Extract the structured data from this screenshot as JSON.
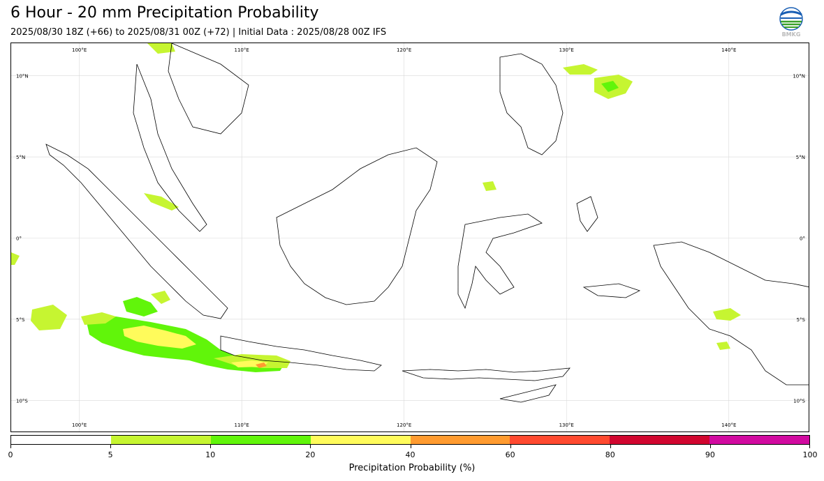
{
  "header": {
    "title": "6 Hour - 20 mm Precipitation Probability",
    "subtitle": "2025/08/30 18Z (+66) to 2025/08/31 00Z (+72) | Initial Data : 2025/08/28 00Z IFS"
  },
  "logo": {
    "icon": "bmkg-logo-icon",
    "text": "BMKG"
  },
  "map": {
    "lon_range": [
      95.8,
      145.0
    ],
    "lat_range": [
      -12.0,
      12.0
    ],
    "lon_ticks": [
      {
        "value": 100,
        "label": "100°E"
      },
      {
        "value": 110,
        "label": "110°E"
      },
      {
        "value": 120,
        "label": "120°E"
      },
      {
        "value": 130,
        "label": "130°E"
      },
      {
        "value": 140,
        "label": "140°E"
      }
    ],
    "lat_ticks": [
      {
        "value": 10,
        "label": "10°N"
      },
      {
        "value": 5,
        "label": "5°N"
      },
      {
        "value": 0,
        "label": "0°"
      },
      {
        "value": -5,
        "label": "5°S"
      },
      {
        "value": -10,
        "label": "10°S"
      }
    ]
  },
  "colorbar": {
    "title": "Precipitation Probability (%)",
    "bounds": [
      0,
      5,
      10,
      20,
      40,
      60,
      80,
      90,
      100
    ],
    "colors": [
      "#ffffff",
      "#c6f531",
      "#61f50a",
      "#fffb5b",
      "#ff9b30",
      "#ff4a30",
      "#d1062f",
      "#d10aa0"
    ]
  }
}
